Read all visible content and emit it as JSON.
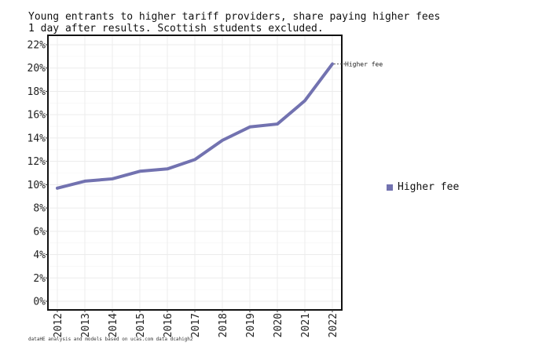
{
  "chart_data": {
    "type": "line",
    "title": "Young entrants to higher tariff providers, share paying higher fees",
    "subtitle": "1 day after results. Scottish students excluded.",
    "caption": "dataHE analysis and models based on ucas.com data dcahigh2",
    "xlabel": "",
    "ylabel": "",
    "x": [
      2012,
      2013,
      2014,
      2015,
      2016,
      2017,
      2018,
      2019,
      2020,
      2021,
      2022
    ],
    "series": [
      {
        "name": "Higher fee",
        "color": "#7272b0",
        "values": [
          9.7,
          10.3,
          10.5,
          11.15,
          11.35,
          12.15,
          13.8,
          14.95,
          15.2,
          17.2,
          20.35
        ]
      }
    ],
    "yticks": [
      0,
      2,
      4,
      6,
      8,
      10,
      12,
      14,
      16,
      18,
      20,
      22
    ],
    "ytick_suffix": "%",
    "ylim": [
      0,
      22
    ],
    "grid": true,
    "legend": "right",
    "end_label": "Higher fee"
  }
}
